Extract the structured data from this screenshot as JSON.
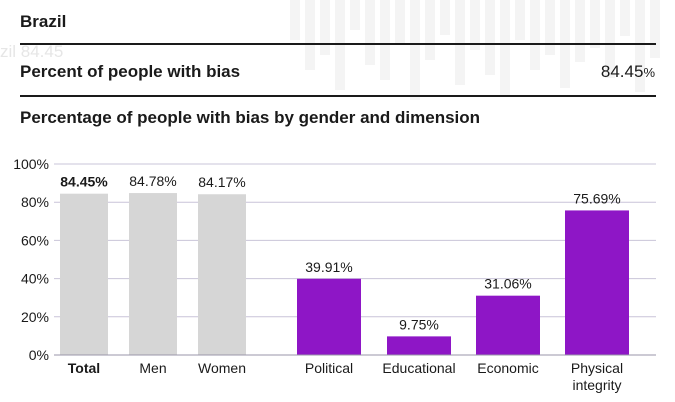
{
  "header": {
    "country": "Brazil",
    "ghost_text": "zil 84.45"
  },
  "summary": {
    "label": "Percent of people with bias",
    "value": "84.45",
    "unit": "%"
  },
  "chart_title": "Percentage of people with bias by gender and dimension",
  "colors": {
    "gender_bar": "#d6d6d6",
    "dimension_bar": "#8e16c6",
    "grid": "#c9c4d8",
    "text": "#1a1a1a"
  },
  "chart_data": {
    "type": "bar",
    "title": "Percentage of people with bias by gender and dimension",
    "ylim": [
      0,
      100
    ],
    "y_ticks": [
      "0%",
      "20%",
      "40%",
      "60%",
      "80%",
      "100%"
    ],
    "y_tick_values": [
      0,
      20,
      40,
      60,
      80,
      100
    ],
    "grid": true,
    "bars": [
      {
        "category": "Total",
        "value": 84.45,
        "label": "84.45%",
        "group": "gender",
        "bold": true
      },
      {
        "category": "Men",
        "value": 84.78,
        "label": "84.78%",
        "group": "gender",
        "bold": false
      },
      {
        "category": "Women",
        "value": 84.17,
        "label": "84.17%",
        "group": "gender",
        "bold": false
      },
      {
        "category": "Political",
        "value": 39.91,
        "label": "39.91%",
        "group": "dimension",
        "bold": false
      },
      {
        "category": "Educational",
        "value": 9.75,
        "label": "9.75%",
        "group": "dimension",
        "bold": false
      },
      {
        "category": "Economic",
        "value": 31.06,
        "label": "31.06%",
        "group": "dimension",
        "bold": false
      },
      {
        "category": "Physical integrity",
        "value": 75.69,
        "label": "75.69%",
        "group": "dimension",
        "bold": false
      }
    ]
  }
}
